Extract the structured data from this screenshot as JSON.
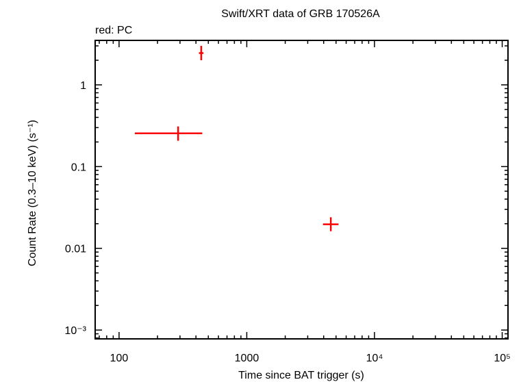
{
  "chart_data": {
    "type": "scatter",
    "title": "Swift/XRT data of GRB 170526A",
    "subtitle": "red: PC",
    "xlabel": "Time since BAT trigger (s)",
    "ylabel": "Count Rate (0.3–10 keV) (s⁻¹)",
    "xscale": "log",
    "yscale": "log",
    "xlim": [
      65,
      111000
    ],
    "ylim": [
      0.00078,
      3.5
    ],
    "grid": false,
    "x_ticks": [
      {
        "value": 100,
        "label": "100"
      },
      {
        "value": 1000,
        "label": "1000"
      },
      {
        "value": 10000,
        "label": "10⁴"
      },
      {
        "value": 100000,
        "label": "10⁵"
      }
    ],
    "y_ticks": [
      {
        "value": 1,
        "label": "1"
      },
      {
        "value": 0.1,
        "label": "0.1"
      },
      {
        "value": 0.01,
        "label": "0.01"
      },
      {
        "value": 0.001,
        "label": "10⁻³"
      }
    ],
    "series": [
      {
        "name": "PC",
        "color": "#ff0000",
        "points": [
          {
            "x": 290,
            "xlo": 133,
            "xhi": 448,
            "y": 0.255,
            "ylo": 0.207,
            "yhi": 0.31
          },
          {
            "x": 440,
            "xlo": 422,
            "xhi": 458,
            "y": 2.45,
            "ylo": 2.0,
            "yhi": 3.0
          },
          {
            "x": 4550,
            "xlo": 3950,
            "xhi": 5230,
            "y": 0.0197,
            "ylo": 0.0162,
            "yhi": 0.024
          }
        ]
      }
    ]
  }
}
